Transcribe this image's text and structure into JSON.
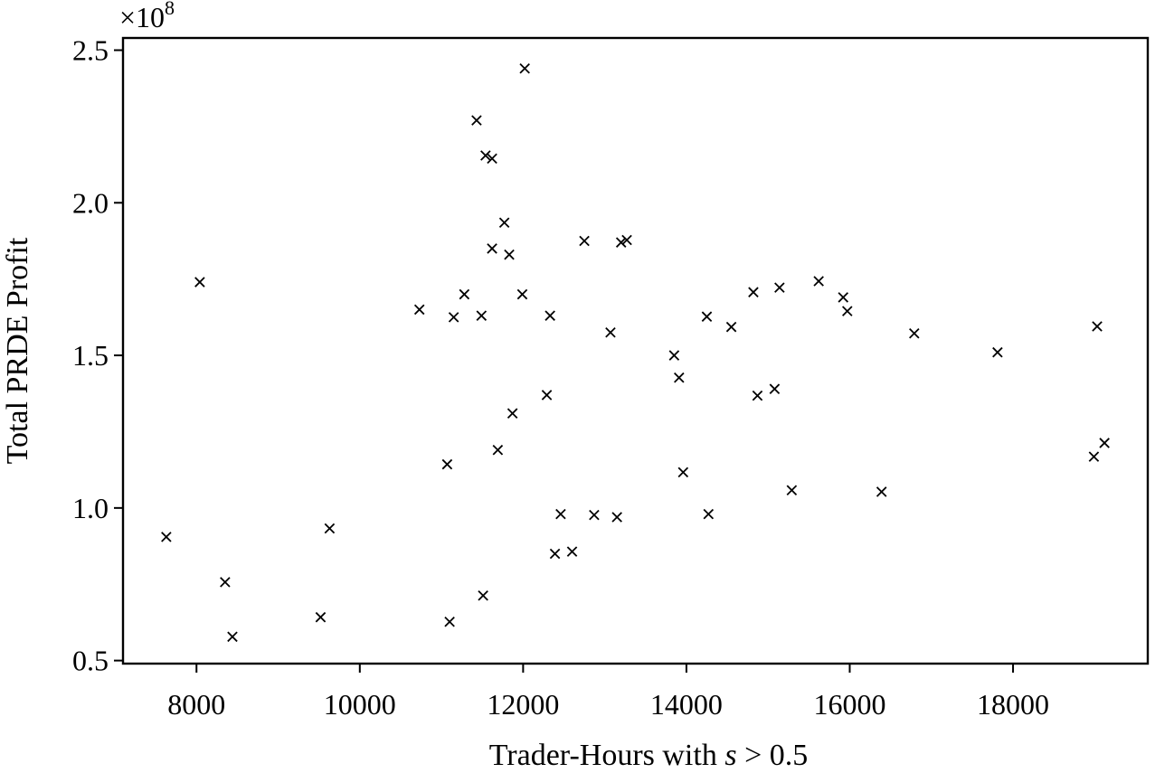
{
  "chart_data": {
    "type": "scatter",
    "title": "",
    "xlabel_prefix": "Trader-Hours with ",
    "xlabel_var": "s",
    "xlabel_suffix": " > 0.5",
    "ylabel": "Total PRDE Profit",
    "y_offset_label": "×10",
    "y_offset_exponent": "8",
    "xlim": [
      7100,
      19650
    ],
    "ylim": [
      0.49,
      2.54
    ],
    "x_ticks": [
      8000,
      10000,
      12000,
      14000,
      16000,
      18000
    ],
    "x_tick_labels": [
      "8000",
      "10000",
      "12000",
      "14000",
      "16000",
      "18000"
    ],
    "y_ticks": [
      0.5,
      1.0,
      1.5,
      2.0,
      2.5
    ],
    "y_tick_labels": [
      "0.5",
      "1.0",
      "1.5",
      "2.0",
      "2.5"
    ],
    "marker": "x",
    "grid": false,
    "series": [
      {
        "points": [
          [
            12020,
            2.44
          ],
          [
            11430,
            2.27
          ],
          [
            11540,
            2.155
          ],
          [
            11620,
            2.145
          ],
          [
            11770,
            1.935
          ],
          [
            11620,
            1.85
          ],
          [
            11830,
            1.83
          ],
          [
            12750,
            1.875
          ],
          [
            13200,
            1.87
          ],
          [
            13270,
            1.878
          ],
          [
            8040,
            1.74
          ],
          [
            10730,
            1.65
          ],
          [
            11280,
            1.7
          ],
          [
            11150,
            1.625
          ],
          [
            11490,
            1.63
          ],
          [
            11990,
            1.7
          ],
          [
            12330,
            1.63
          ],
          [
            13070,
            1.575
          ],
          [
            14250,
            1.627
          ],
          [
            14550,
            1.593
          ],
          [
            14820,
            1.707
          ],
          [
            15140,
            1.722
          ],
          [
            15620,
            1.743
          ],
          [
            15920,
            1.69
          ],
          [
            15970,
            1.645
          ],
          [
            16790,
            1.572
          ],
          [
            17810,
            1.51
          ],
          [
            19030,
            1.595
          ],
          [
            13850,
            1.5
          ],
          [
            13910,
            1.427
          ],
          [
            12290,
            1.37
          ],
          [
            14870,
            1.368
          ],
          [
            15080,
            1.39
          ],
          [
            11870,
            1.31
          ],
          [
            11690,
            1.19
          ],
          [
            11070,
            1.143
          ],
          [
            13960,
            1.117
          ],
          [
            15290,
            1.058
          ],
          [
            16390,
            1.053
          ],
          [
            18990,
            1.168
          ],
          [
            19120,
            1.213
          ],
          [
            7630,
            0.905
          ],
          [
            9630,
            0.933
          ],
          [
            12460,
            0.98
          ],
          [
            12870,
            0.977
          ],
          [
            13150,
            0.97
          ],
          [
            14270,
            0.98
          ],
          [
            12390,
            0.85
          ],
          [
            12600,
            0.857
          ],
          [
            8350,
            0.757
          ],
          [
            11510,
            0.713
          ],
          [
            9520,
            0.642
          ],
          [
            11100,
            0.627
          ],
          [
            8440,
            0.578
          ]
        ]
      }
    ]
  }
}
